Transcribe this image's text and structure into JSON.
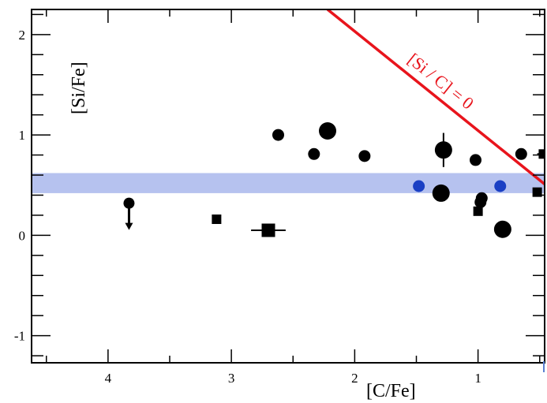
{
  "chart_data": {
    "type": "scatter",
    "title": "",
    "xlabel": "[C/Fe]",
    "ylabel": "[Si/Fe]",
    "xlim": [
      4.62,
      0.46
    ],
    "ylim": [
      -1.27,
      2.25
    ],
    "x_reversed": true,
    "x_ticks": [
      4,
      3,
      2,
      1
    ],
    "y_ticks": [
      2,
      1,
      0,
      -1
    ],
    "x_tick_labels": [
      "4",
      "3",
      "2",
      "1"
    ],
    "y_tick_labels": [
      "2",
      "1",
      "0",
      "-1"
    ],
    "grid": false,
    "band": {
      "y_from": 0.42,
      "y_to": 0.62,
      "color": "#b6c2ef"
    },
    "reference_line": {
      "label": "[Si / C] = 0",
      "color": "#e8141c",
      "points": [
        [
          2.22,
          2.25
        ],
        [
          0.46,
          0.51
        ]
      ]
    },
    "series": [
      {
        "marker": "circle-small",
        "color": "#000000",
        "points": [
          [
            2.62,
            1.0
          ],
          [
            2.33,
            0.81
          ],
          [
            1.92,
            0.79
          ],
          [
            1.02,
            0.75
          ],
          [
            0.97,
            0.37
          ],
          [
            0.98,
            0.33
          ],
          [
            0.65,
            0.81
          ]
        ]
      },
      {
        "marker": "circle-large",
        "color": "#000000",
        "points": [
          [
            2.22,
            1.04
          ],
          [
            1.28,
            0.85
          ],
          [
            1.3,
            0.42
          ],
          [
            0.8,
            0.06
          ]
        ]
      },
      {
        "marker": "circle-small",
        "color": "#1a3fc4",
        "points": [
          [
            1.48,
            0.49
          ],
          [
            0.82,
            0.49
          ]
        ]
      },
      {
        "marker": "square",
        "color": "#000000",
        "points": [
          [
            3.12,
            0.16
          ],
          [
            2.7,
            0.05
          ],
          [
            1.0,
            0.24
          ],
          [
            0.52,
            0.43
          ],
          [
            0.47,
            0.81
          ]
        ]
      },
      {
        "marker": "upper-limit",
        "color": "#000000",
        "points": [
          [
            3.83,
            0.32
          ]
        ]
      }
    ],
    "error_bars": [
      {
        "x": 1.28,
        "y": 0.85,
        "y_err": 0.17
      },
      {
        "x": 2.7,
        "y": 0.05,
        "x_err": 0.14
      },
      {
        "x": 0.47,
        "y": 0.81,
        "x_err": 0.05
      }
    ]
  }
}
